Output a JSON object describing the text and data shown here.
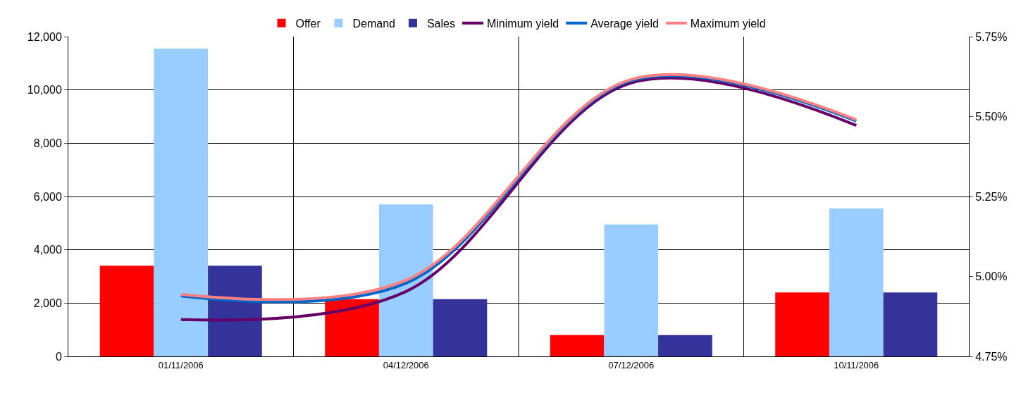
{
  "chart_data": {
    "type": "bar",
    "categories": [
      "01/11/2006",
      "04/12/2006",
      "07/12/2006",
      "10/11/2006"
    ],
    "series": [
      {
        "name": "Offer",
        "color": "#ff0000",
        "values": [
          3400,
          2150,
          800,
          2400
        ]
      },
      {
        "name": "Demand",
        "color": "#99ccff",
        "values": [
          11550,
          5700,
          4950,
          5550
        ]
      },
      {
        "name": "Sales",
        "color": "#333399",
        "values": [
          3400,
          2150,
          800,
          2400
        ]
      },
      {
        "name": "Minimum yield",
        "type": "line",
        "axis": "y2",
        "color": "#660066",
        "values": [
          4.865,
          4.953,
          5.605,
          5.472
        ]
      },
      {
        "name": "Average yield",
        "type": "line",
        "axis": "y2",
        "color": "#0066cc",
        "values": [
          4.939,
          4.979,
          5.612,
          5.486
        ]
      },
      {
        "name": "Maximum yield",
        "type": "line",
        "axis": "y2",
        "color": "#ff8080",
        "values": [
          4.944,
          4.988,
          5.616,
          5.49
        ]
      }
    ],
    "ylim": [
      0,
      12000
    ],
    "yticks": [
      {
        "value": 0,
        "label": "0"
      },
      {
        "value": 2000,
        "label": "2,000"
      },
      {
        "value": 4000,
        "label": "4,000"
      },
      {
        "value": 6000,
        "label": "6,000"
      },
      {
        "value": 8000,
        "label": "8,000"
      },
      {
        "value": 10000,
        "label": "10,000"
      },
      {
        "value": 12000,
        "label": "12,000"
      }
    ],
    "y2lim": [
      4.75,
      5.75
    ],
    "y2ticks": [
      {
        "value": 4.75,
        "label": "4.75%"
      },
      {
        "value": 5,
        "label": "5.00%"
      },
      {
        "value": 5.25,
        "label": "5.25%"
      },
      {
        "value": 5.5,
        "label": "5.50%"
      },
      {
        "value": 5.75,
        "label": "5.75%"
      }
    ],
    "grid": true,
    "legend": "top",
    "marker": "none",
    "line_style": "solid"
  }
}
